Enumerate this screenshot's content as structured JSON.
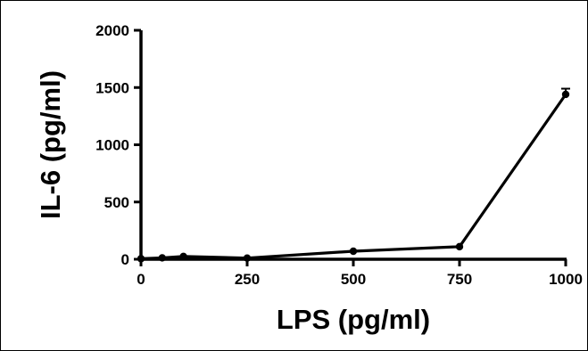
{
  "chart_data": {
    "type": "line",
    "xlabel": "LPS (pg/ml)",
    "ylabel": "IL-6 (pg/ml)",
    "xlim": [
      0,
      1000
    ],
    "ylim": [
      0,
      2000
    ],
    "xticks": [
      0,
      250,
      500,
      750,
      1000
    ],
    "yticks": [
      0,
      500,
      1000,
      1500,
      2000
    ],
    "grid": false,
    "series": [
      {
        "x": [
          0,
          50,
          100,
          250,
          500,
          750,
          1000
        ],
        "y": [
          5,
          12,
          25,
          10,
          70,
          110,
          1440
        ],
        "error": [
          0,
          0,
          0,
          0,
          0,
          0,
          50
        ]
      }
    ],
    "colors": {
      "line": "#000000",
      "marker": "#000000"
    }
  }
}
